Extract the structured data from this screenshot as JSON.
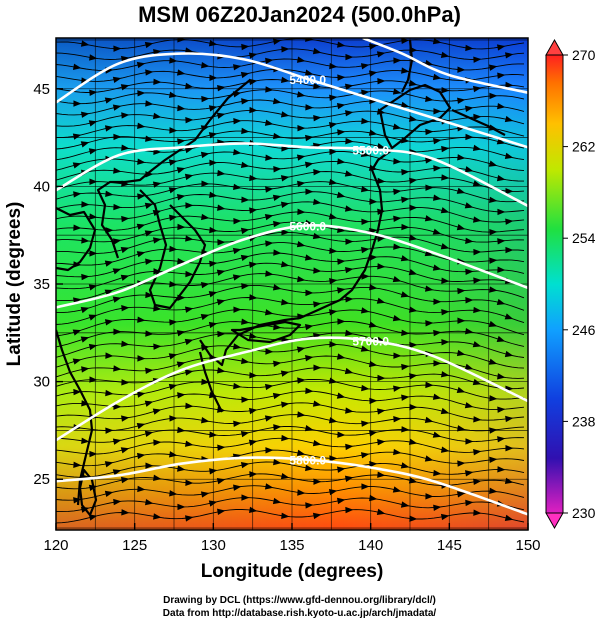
{
  "title": "MSM 06Z20Jan2024 (500.0hPa)",
  "x_axis": {
    "label": "Longitude (degrees)",
    "range": [
      120,
      150
    ],
    "ticks": [
      120,
      125,
      130,
      135,
      140,
      145,
      150
    ]
  },
  "y_axis": {
    "label": "Latitude  (degrees)",
    "range": [
      22.4,
      47.6
    ],
    "ticks": [
      25,
      30,
      35,
      40,
      45
    ]
  },
  "colorbar": {
    "range": [
      230,
      270
    ],
    "ticks": [
      230,
      238,
      246,
      254,
      262,
      270
    ],
    "colors": [
      "#e020c0",
      "#1010a0",
      "#1e63ff",
      "#00e0e0",
      "#20e040",
      "#e8e800",
      "#ff8800",
      "#ff2020"
    ]
  },
  "contours": [
    {
      "label": "5400.0",
      "points": [
        [
          120,
          44.3
        ],
        [
          124,
          46.3
        ],
        [
          128,
          46.8
        ],
        [
          132,
          46.5
        ],
        [
          136,
          45.5
        ],
        [
          140,
          44.5
        ],
        [
          144,
          43.5
        ],
        [
          150,
          42.0
        ]
      ]
    },
    {
      "label": "5500.0",
      "points": [
        [
          120,
          39.8
        ],
        [
          124,
          41.6
        ],
        [
          128,
          42.0
        ],
        [
          132,
          42.2
        ],
        [
          136,
          42.0
        ],
        [
          140,
          41.9
        ],
        [
          144,
          41.4
        ],
        [
          150,
          39.0
        ]
      ]
    },
    {
      "label": "5600.0",
      "points": [
        [
          120,
          33.8
        ],
        [
          124,
          34.6
        ],
        [
          128,
          36.0
        ],
        [
          132,
          37.3
        ],
        [
          136,
          38.0
        ],
        [
          140,
          37.6
        ],
        [
          144,
          36.6
        ],
        [
          150,
          34.8
        ]
      ]
    },
    {
      "label": "5700.0",
      "points": [
        [
          120,
          27.0
        ],
        [
          124,
          29.0
        ],
        [
          128,
          30.6
        ],
        [
          132,
          31.5
        ],
        [
          136,
          32.2
        ],
        [
          140,
          32.1
        ],
        [
          144,
          31.3
        ],
        [
          150,
          29.0
        ]
      ]
    },
    {
      "label": "5800.0",
      "points": [
        [
          120,
          24.9
        ],
        [
          124,
          25.2
        ],
        [
          128,
          25.8
        ],
        [
          132,
          26.1
        ],
        [
          136,
          26.0
        ],
        [
          140,
          25.6
        ],
        [
          144,
          24.9
        ],
        [
          150,
          23.2
        ]
      ]
    }
  ],
  "outer_contour": {
    "label": "",
    "points": [
      [
        139.5,
        47.6
      ],
      [
        142,
        46.8
      ],
      [
        145,
        45.7
      ],
      [
        150,
        44.8
      ]
    ]
  },
  "credits": {
    "line1": "Drawing by DCL (https://www.gfd-dennou.org/library/dcl/)",
    "line2": "Data from http://database.rish.kyoto-u.ac.jp/arch/jmadata/"
  }
}
